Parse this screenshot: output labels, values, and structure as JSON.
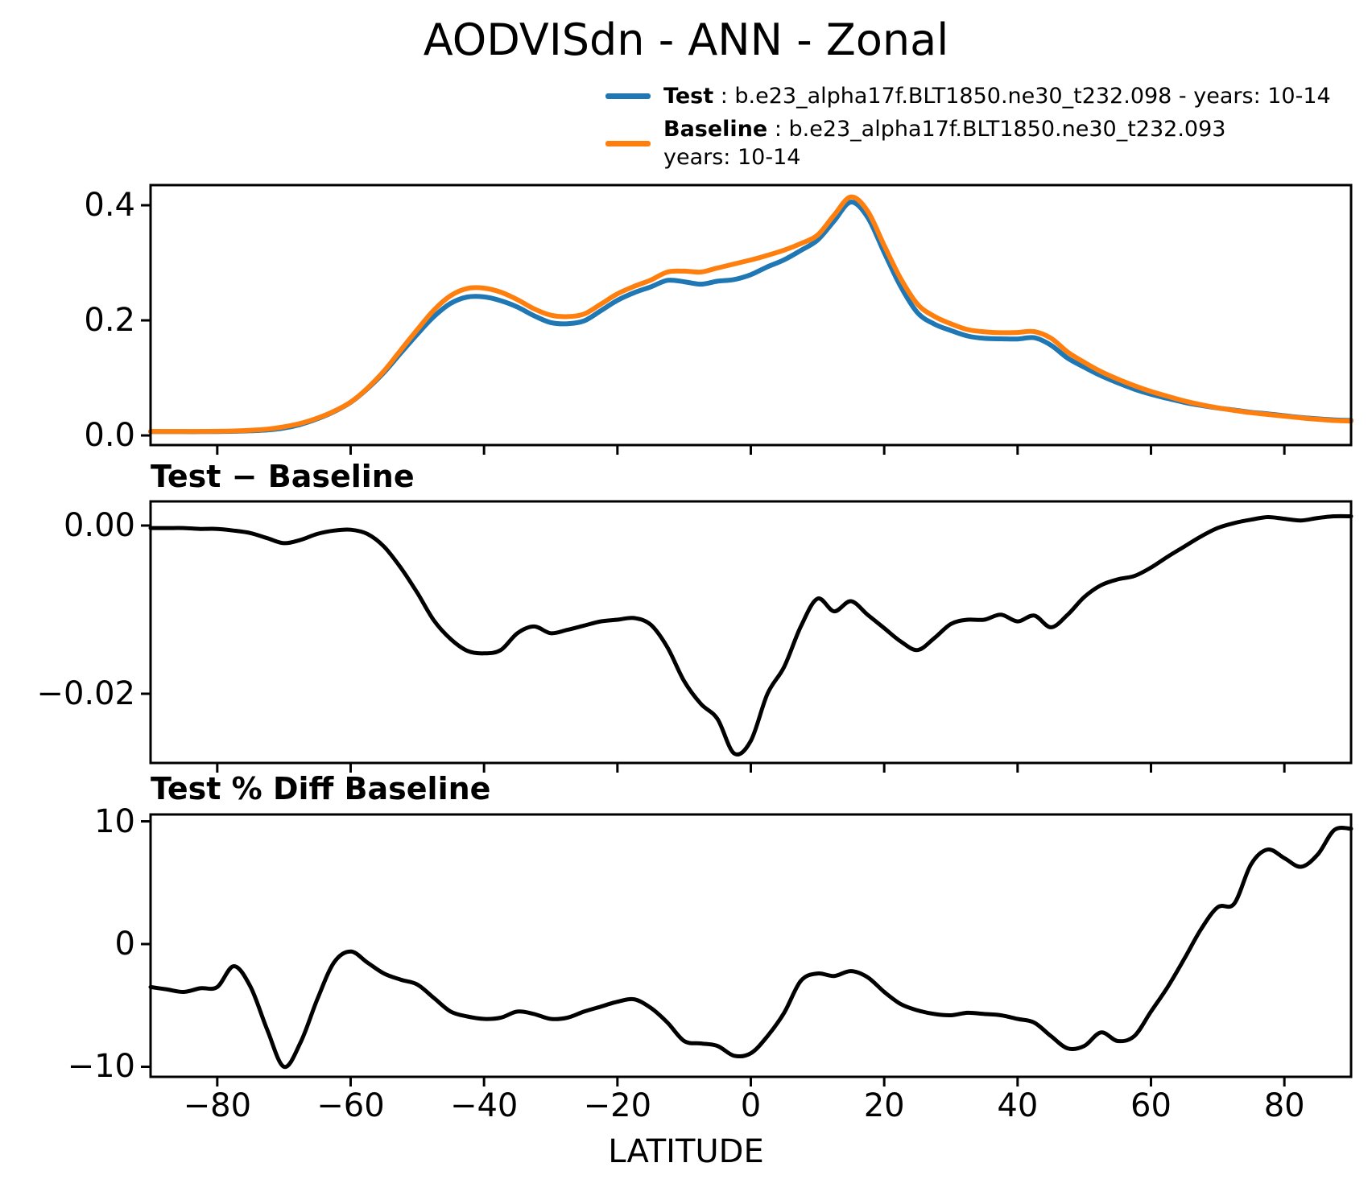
{
  "title": "AODVISdn - ANN - Zonal",
  "legend": {
    "test_label": "Test",
    "test_desc": " : b.e23_alpha17f.BLT1850.ne30_t232.098 - years: 10-14",
    "baseline_label": "Baseline",
    "baseline_desc": " : b.e23_alpha17f.BLT1850.ne30_t232.093",
    "baseline_desc_line2": "years: 10-14"
  },
  "colors": {
    "test": "#1f77b4",
    "baseline": "#ff7f0e",
    "diff_line": "#000000"
  },
  "chart_data": [
    {
      "type": "line",
      "title": "AODVISdn - ANN - Zonal",
      "xlabel": "",
      "ylabel": "",
      "xlim": [
        -90,
        90
      ],
      "ylim": [
        -0.0167,
        0.435
      ],
      "grid": false,
      "legend_position": "upper-right-above-axes",
      "x": [
        -90,
        -87.5,
        -85,
        -82.5,
        -80,
        -77.5,
        -75,
        -72.5,
        -70,
        -67.5,
        -65,
        -62.5,
        -60,
        -57.5,
        -55,
        -52.5,
        -50,
        -47.5,
        -45,
        -42.5,
        -40,
        -37.5,
        -35,
        -32.5,
        -30,
        -27.5,
        -25,
        -22.5,
        -20,
        -17.5,
        -15,
        -12.5,
        -10,
        -7.5,
        -5,
        -2.5,
        0,
        2.5,
        5,
        7.5,
        10,
        12.5,
        15,
        17.5,
        20,
        22.5,
        25,
        27.5,
        30,
        32.5,
        35,
        37.5,
        40,
        42.5,
        45,
        47.5,
        50,
        52.5,
        55,
        57.5,
        60,
        62.5,
        65,
        67.5,
        70,
        72.5,
        75,
        77.5,
        80,
        82.5,
        85,
        87.5,
        90
      ],
      "xticks": {
        "values": [
          -80,
          -60,
          -40,
          -20,
          0,
          20,
          40,
          60,
          80
        ],
        "labels": [
          "−80",
          "−60",
          "−40",
          "−20",
          "0",
          "20",
          "40",
          "60",
          "80"
        ]
      },
      "yticks": {
        "values": [
          0.0,
          0.2,
          0.4
        ],
        "labels": [
          "0.0",
          "0.2",
          "0.4"
        ]
      },
      "series": [
        {
          "name": "Test",
          "color": "#1f77b4",
          "values": [
            0.0067,
            0.0067,
            0.0067,
            0.0066,
            0.0068,
            0.0072,
            0.0081,
            0.0095,
            0.0129,
            0.0193,
            0.029,
            0.0414,
            0.0575,
            0.081,
            0.1095,
            0.143,
            0.176,
            0.2067,
            0.2295,
            0.2406,
            0.2408,
            0.2342,
            0.2232,
            0.208,
            0.1962,
            0.1941,
            0.1991,
            0.2166,
            0.2348,
            0.248,
            0.2582,
            0.2695,
            0.267,
            0.2628,
            0.268,
            0.2709,
            0.2794,
            0.293,
            0.3052,
            0.3215,
            0.3393,
            0.3728,
            0.4055,
            0.3794,
            0.3178,
            0.2582,
            0.2132,
            0.1936,
            0.1823,
            0.1728,
            0.1688,
            0.1679,
            0.1676,
            0.1698,
            0.1569,
            0.1344,
            0.1185,
            0.1039,
            0.0916,
            0.0805,
            0.0715,
            0.0643,
            0.0575,
            0.0522,
            0.0477,
            0.0441,
            0.0402,
            0.0375,
            0.0343,
            0.0311,
            0.0289,
            0.0271,
            0.0261
          ]
        },
        {
          "name": "Baseline",
          "color": "#ff7f0e",
          "values": [
            0.007,
            0.007,
            0.007,
            0.007,
            0.0072,
            0.0078,
            0.009,
            0.011,
            0.015,
            0.021,
            0.03,
            0.042,
            0.058,
            0.082,
            0.112,
            0.148,
            0.184,
            0.218,
            0.243,
            0.2555,
            0.256,
            0.249,
            0.236,
            0.22,
            0.209,
            0.2065,
            0.211,
            0.228,
            0.246,
            0.259,
            0.27,
            0.284,
            0.2855,
            0.284,
            0.291,
            0.298,
            0.305,
            0.313,
            0.322,
            0.3335,
            0.348,
            0.383,
            0.4145,
            0.39,
            0.33,
            0.272,
            0.228,
            0.207,
            0.194,
            0.184,
            0.18,
            0.1785,
            0.179,
            0.1805,
            0.169,
            0.145,
            0.127,
            0.111,
            0.098,
            0.0865,
            0.0765,
            0.068,
            0.06,
            0.0535,
            0.048,
            0.0435,
            0.0395,
            0.0365,
            0.0335,
            0.0305,
            0.028,
            0.026,
            0.025
          ]
        }
      ]
    },
    {
      "type": "line",
      "title": "Test − Baseline",
      "xlabel": "",
      "ylabel": "",
      "xlim": [
        -90,
        90
      ],
      "ylim": [
        -0.02823,
        0.00287
      ],
      "grid": false,
      "x": [
        -90,
        -87.5,
        -85,
        -82.5,
        -80,
        -77.5,
        -75,
        -72.5,
        -70,
        -67.5,
        -65,
        -62.5,
        -60,
        -57.5,
        -55,
        -52.5,
        -50,
        -47.5,
        -45,
        -42.5,
        -40,
        -37.5,
        -35,
        -32.5,
        -30,
        -27.5,
        -25,
        -22.5,
        -20,
        -17.5,
        -15,
        -12.5,
        -10,
        -7.5,
        -5,
        -2.5,
        0,
        2.5,
        5,
        7.5,
        10,
        12.5,
        15,
        17.5,
        20,
        22.5,
        25,
        27.5,
        30,
        32.5,
        35,
        37.5,
        40,
        42.5,
        45,
        47.5,
        50,
        52.5,
        55,
        57.5,
        60,
        62.5,
        65,
        67.5,
        70,
        72.5,
        75,
        77.5,
        80,
        82.5,
        85,
        87.5,
        90
      ],
      "xticks": {
        "values": [
          -80,
          -60,
          -40,
          -20,
          0,
          20,
          40,
          60,
          80
        ],
        "labels": [
          "−80",
          "−60",
          "−40",
          "−20",
          "0",
          "20",
          "40",
          "60",
          "80"
        ]
      },
      "yticks": {
        "values": [
          0.0,
          -0.02
        ],
        "labels": [
          "0.00",
          "−0.02"
        ]
      },
      "series": [
        {
          "name": "Test - Baseline",
          "color": "#000000",
          "values": [
            -0.0003,
            -0.0003,
            -0.0003,
            -0.0004,
            -0.0004,
            -0.0006,
            -0.0009,
            -0.0015,
            -0.0021,
            -0.0017,
            -0.001,
            -0.0006,
            -0.0005,
            -0.001,
            -0.0025,
            -0.005,
            -0.008,
            -0.0113,
            -0.0135,
            -0.0149,
            -0.0152,
            -0.0148,
            -0.0128,
            -0.012,
            -0.0128,
            -0.0124,
            -0.0119,
            -0.0114,
            -0.0112,
            -0.011,
            -0.0118,
            -0.0145,
            -0.0185,
            -0.0212,
            -0.023,
            -0.0271,
            -0.0256,
            -0.02,
            -0.0168,
            -0.012,
            -0.0087,
            -0.0102,
            -0.009,
            -0.0106,
            -0.0122,
            -0.0138,
            -0.0148,
            -0.0134,
            -0.0117,
            -0.0112,
            -0.0112,
            -0.0106,
            -0.0114,
            -0.0107,
            -0.0121,
            -0.0106,
            -0.0085,
            -0.0071,
            -0.0064,
            -0.006,
            -0.005,
            -0.0037,
            -0.0025,
            -0.0013,
            -0.0003,
            0.0003,
            0.0007,
            0.001,
            0.0008,
            0.0006,
            0.0009,
            0.0011,
            0.0011
          ]
        }
      ]
    },
    {
      "type": "line",
      "title": "Test % Diff Baseline",
      "xlabel": "LATITUDE",
      "ylabel": "",
      "xlim": [
        -90,
        90
      ],
      "ylim": [
        -10.82,
        10.56
      ],
      "grid": false,
      "x": [
        -90,
        -87.5,
        -85,
        -82.5,
        -80,
        -77.5,
        -75,
        -72.5,
        -70,
        -67.5,
        -65,
        -62.5,
        -60,
        -57.5,
        -55,
        -52.5,
        -50,
        -47.5,
        -45,
        -42.5,
        -40,
        -37.5,
        -35,
        -32.5,
        -30,
        -27.5,
        -25,
        -22.5,
        -20,
        -17.5,
        -15,
        -12.5,
        -10,
        -7.5,
        -5,
        -2.5,
        0,
        2.5,
        5,
        7.5,
        10,
        12.5,
        15,
        17.5,
        20,
        22.5,
        25,
        27.5,
        30,
        32.5,
        35,
        37.5,
        40,
        42.5,
        45,
        47.5,
        50,
        52.5,
        55,
        57.5,
        60,
        62.5,
        65,
        67.5,
        70,
        72.5,
        75,
        77.5,
        80,
        82.5,
        85,
        87.5,
        90
      ],
      "xticks": {
        "values": [
          -80,
          -60,
          -40,
          -20,
          0,
          20,
          40,
          60,
          80
        ],
        "labels": [
          "−80",
          "−60",
          "−40",
          "−20",
          "0",
          "20",
          "40",
          "60",
          "80"
        ]
      },
      "yticks": {
        "values": [
          10,
          0,
          -10
        ],
        "labels": [
          "10",
          "0",
          "−10"
        ]
      },
      "series": [
        {
          "name": "Test % Diff Baseline",
          "color": "#000000",
          "values": [
            -3.5,
            -3.7,
            -3.9,
            -3.6,
            -3.5,
            -1.8,
            -3.5,
            -7.0,
            -10.0,
            -8.0,
            -4.5,
            -1.5,
            -0.6,
            -1.5,
            -2.4,
            -2.9,
            -3.3,
            -4.4,
            -5.5,
            -5.9,
            -6.1,
            -6.0,
            -5.5,
            -5.7,
            -6.1,
            -6.0,
            -5.5,
            -5.1,
            -4.7,
            -4.5,
            -5.2,
            -6.4,
            -7.9,
            -8.1,
            -8.3,
            -9.1,
            -8.9,
            -7.5,
            -5.6,
            -3.0,
            -2.4,
            -2.6,
            -2.2,
            -2.7,
            -3.9,
            -4.9,
            -5.4,
            -5.7,
            -5.8,
            -5.6,
            -5.7,
            -5.8,
            -6.1,
            -6.4,
            -7.5,
            -8.5,
            -8.3,
            -7.2,
            -7.9,
            -7.5,
            -5.5,
            -3.5,
            -1.2,
            1.2,
            3.0,
            3.3,
            6.5,
            7.7,
            7.0,
            6.3,
            7.3,
            9.3,
            9.4
          ]
        }
      ]
    }
  ]
}
